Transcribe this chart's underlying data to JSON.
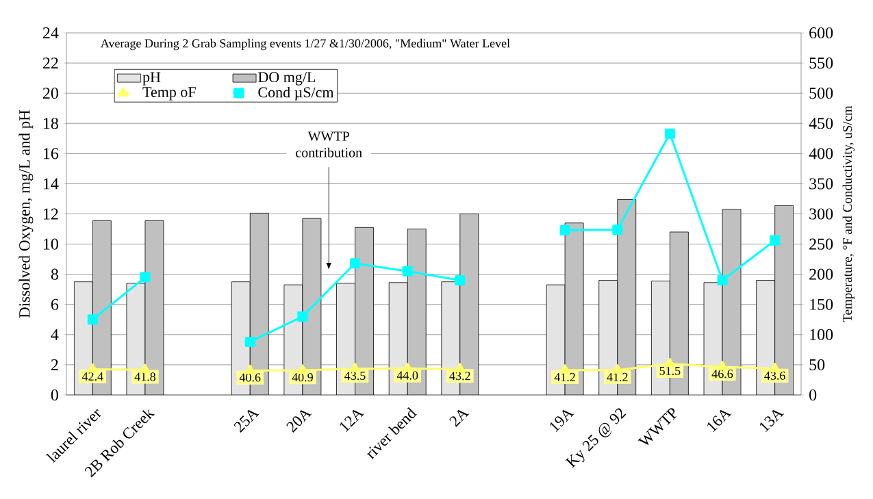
{
  "chart_data": {
    "type": "bar",
    "title": "Average During 2 Grab Sampling events  1/27 &1/30/2006, \"Medium\" Water Level",
    "ylabel": "Dissolved Oxygen, mg/L and pH",
    "y2label": "Temperature,  °F and Conductivity,  uS/cm",
    "annotations": [
      "WWTP contribution"
    ],
    "categories": [
      "laurel river",
      "2B Rob Creek",
      null,
      "25A",
      "20A",
      "12A",
      "river bend",
      "2A",
      null,
      "19A",
      "Ky 25 @ 92",
      "WWTP",
      "16A",
      "13A"
    ],
    "series": [
      {
        "name": "pH",
        "color": "#e4e4e4",
        "values": [
          7.5,
          7.4,
          null,
          7.5,
          7.3,
          7.4,
          7.45,
          7.5,
          null,
          7.3,
          7.6,
          7.55,
          7.45,
          7.6
        ]
      },
      {
        "name": "DO  mg/L",
        "color": "#c0c0c0",
        "values": [
          11.55,
          11.55,
          null,
          12.05,
          11.7,
          11.1,
          11.0,
          12.0,
          null,
          11.4,
          12.95,
          10.8,
          12.3,
          12.55
        ]
      },
      {
        "name": "Temp oF",
        "type": "line",
        "axis": "y2",
        "marker": "triangle",
        "color": "#ffff66",
        "values": [
          42.4,
          41.8,
          null,
          40.6,
          40.9,
          43.5,
          44.0,
          43.2,
          null,
          41.2,
          41.2,
          51.5,
          46.6,
          43.6
        ],
        "value_labels": [
          "42.4",
          "41.8",
          null,
          "40.6",
          "40.9",
          "43.5",
          "44.0",
          "43.2",
          null,
          "41.2",
          "41.2",
          "51.5",
          "46.6",
          "43.6"
        ]
      },
      {
        "name": "Cond µS/cm",
        "type": "line",
        "axis": "y2",
        "marker": "square",
        "color": "#00ffff",
        "values": [
          125,
          195,
          null,
          88,
          130,
          218,
          205,
          190,
          null,
          273,
          274,
          433,
          190,
          256
        ]
      }
    ],
    "ylim": [
      0,
      24
    ],
    "yticks": [
      0,
      2,
      4,
      6,
      8,
      10,
      12,
      14,
      16,
      18,
      20,
      22,
      24
    ],
    "y2lim": [
      0,
      600
    ],
    "y2ticks": [
      0,
      50,
      100,
      150,
      200,
      250,
      300,
      350,
      400,
      450,
      500,
      550,
      600
    ],
    "grid": "y",
    "legend": "top left"
  }
}
